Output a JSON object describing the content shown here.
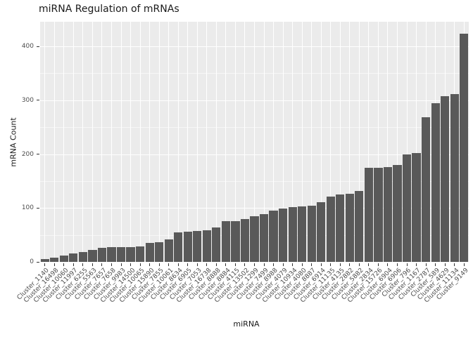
{
  "title": "miRNA Regulation of mRNAs",
  "x_axis_label": "miRNA",
  "y_axis_label": "mRNA Count",
  "chart_data": {
    "type": "bar",
    "title": "miRNA Regulation of mRNAs",
    "xlabel": "miRNA",
    "ylabel": "mRNA Count",
    "categories": [
      "Cluster_1140",
      "Cluster_16498",
      "Cluster_10060",
      "Cluster_11997",
      "Cluster_6255",
      "Cluster_5563",
      "Cluster_7657",
      "Cluster_7658",
      "Cluster_9983",
      "Cluster_14500",
      "Cluster_10065",
      "Cluster_15890",
      "Cluster_7855",
      "Cluster_10061",
      "Cluster_8634",
      "Cluster_6905",
      "Cluster_7053",
      "Cluster_16738",
      "Cluster_8888",
      "Cluster_8884",
      "Cluster_4115",
      "Cluster_13502",
      "Cluster_1299",
      "Cluster_7499",
      "Cluster_8988",
      "Cluster_4079",
      "Cluster_10934",
      "Cluster_4080",
      "Cluster_8887",
      "Cluster_6914",
      "Cluster_11135",
      "Cluster_4135",
      "Cluster_2882",
      "Cluster_5882",
      "Cluster_2834",
      "Cluster_15726",
      "Cluster_6904",
      "Cluster_6906",
      "Cluster_796",
      "Cluster_1167",
      "Cluster_2787",
      "Cluster_589",
      "Cluster_4629",
      "Cluster_11134",
      "Cluster_9149"
    ],
    "values": [
      5,
      8,
      12,
      15,
      18,
      22,
      26,
      27,
      28,
      28,
      29,
      35,
      37,
      42,
      55,
      56,
      57,
      58,
      64,
      75,
      76,
      79,
      85,
      88,
      95,
      99,
      102,
      103,
      104,
      111,
      121,
      125,
      127,
      132,
      174,
      175,
      176,
      180,
      199,
      202,
      268,
      295,
      308,
      312,
      424
    ],
    "y_ticks": [
      0,
      100,
      200,
      300,
      400
    ],
    "ylim": [
      0,
      444
    ],
    "grid": true,
    "legend": "none",
    "bar_color": "#595959",
    "panel_bg": "#EBEBEB",
    "grid_color": "#FFFFFF",
    "axis_text_color": "#4D4D4D"
  }
}
